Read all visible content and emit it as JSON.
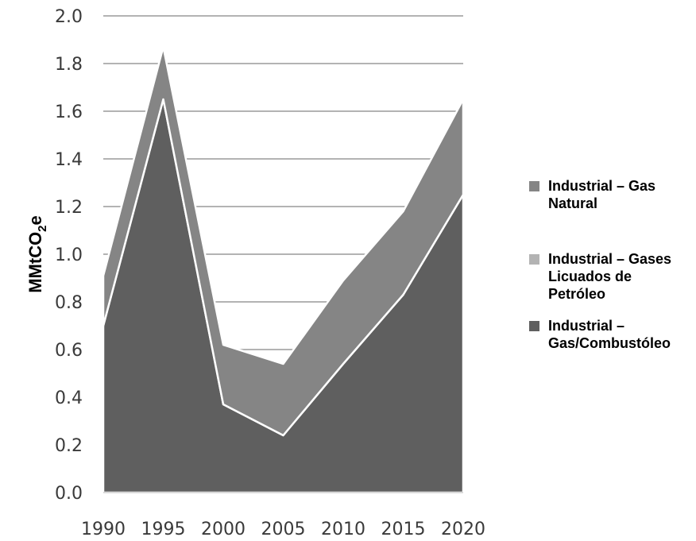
{
  "chart_data": {
    "type": "area",
    "stacked": true,
    "x": [
      "1990",
      "1995",
      "2000",
      "2005",
      "2010",
      "2015",
      "2020"
    ],
    "series": [
      {
        "name_lines": [
          "Industrial – Gas/Combustóleo"
        ],
        "legend_lines": [
          "Industrial –",
          "Gas/Combustóleo"
        ],
        "color": "#5f5f5f",
        "values": [
          0.7,
          1.65,
          0.37,
          0.24,
          0.54,
          0.83,
          1.25
        ]
      },
      {
        "legend_lines": [
          "Industrial – Gases",
          "Licuados de",
          "Petróleo"
        ],
        "color": "#b3b3b3",
        "values": [
          0,
          0,
          0,
          0,
          0,
          0,
          0
        ]
      },
      {
        "legend_lines": [
          "Industrial – Gas",
          "Natural"
        ],
        "color": "#858585",
        "values": [
          0.21,
          0.22,
          0.25,
          0.3,
          0.35,
          0.35,
          0.4
        ]
      }
    ],
    "ylabel": {
      "main": "MMtCO",
      "sub": "2",
      "tail": "e"
    },
    "ylim": [
      0,
      2.0
    ],
    "yticks": [
      "0.0",
      "0.2",
      "0.4",
      "0.6",
      "0.8",
      "1.0",
      "1.2",
      "1.4",
      "1.6",
      "1.8",
      "2.0"
    ],
    "grid": true,
    "legend_position": "right",
    "legend_order": [
      2,
      1,
      0
    ]
  }
}
